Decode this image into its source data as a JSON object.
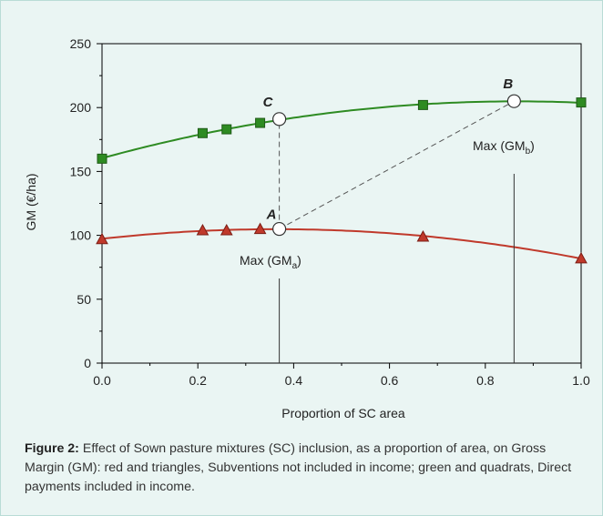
{
  "chart_data": {
    "type": "line",
    "xlabel": "Proportion of SC area",
    "ylabel": "GM (€/ha)",
    "xlim": [
      0,
      1
    ],
    "ylim": [
      0,
      250
    ],
    "x_ticks": [
      "0.0",
      "0.2",
      "0.4",
      "0.6",
      "0.8",
      "1.0"
    ],
    "y_ticks": [
      "0",
      "50",
      "100",
      "150",
      "200",
      "250"
    ],
    "grid": false,
    "series": [
      {
        "marker": "square",
        "color": "#2e8b22",
        "x": [
          0,
          0.21,
          0.26,
          0.33,
          0.67,
          1.0
        ],
        "y": [
          160,
          180,
          183,
          188,
          202,
          204
        ]
      },
      {
        "marker": "triangle",
        "color": "#c0392b",
        "x": [
          0,
          0.21,
          0.26,
          0.33,
          0.67,
          1.0
        ],
        "y": [
          97,
          104,
          104,
          105,
          99,
          82
        ]
      }
    ],
    "points": [
      {
        "label": "A",
        "x": 0.37,
        "y": 105
      },
      {
        "label": "B",
        "x": 0.86,
        "y": 205
      },
      {
        "label": "C",
        "x": 0.37,
        "y": 191
      }
    ],
    "annotations": {
      "max_a_text": "Max (GM",
      "max_a_sub": "a",
      "max_a_close": ")",
      "max_b_text": "Max (GM",
      "max_b_sub": "b",
      "max_b_close": ")"
    }
  },
  "caption": {
    "label": "Figure 2:",
    "text": " Effect of Sown pasture mixtures (SC) inclusion, as a proportion of area, on Gross Margin (GM): red and triangles, Subventions not included in income; green and quadrats, Direct payments included in income."
  }
}
